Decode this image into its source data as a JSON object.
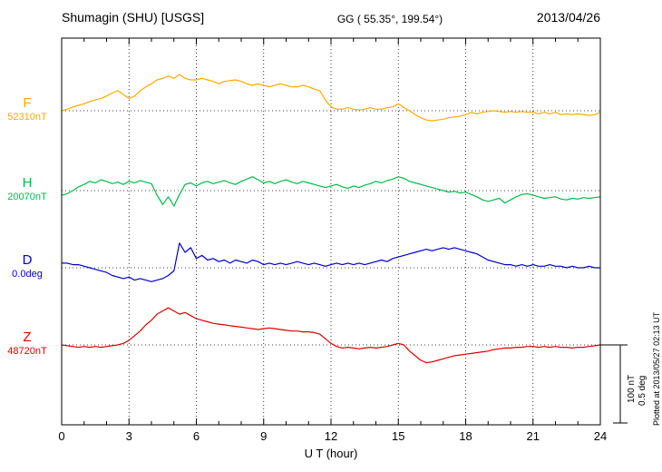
{
  "header": {
    "station": "Shumagin (SHU)  [USGS]",
    "coords": "GG ( 55.35°, 199.54°)",
    "date": "2013/04/26"
  },
  "side": {
    "plotted_at": "Plotted at 2013/05/27 02:13 UT",
    "scale_nt_label": "100 nT",
    "scale_deg_label": "0.5 deg"
  },
  "chart_data": {
    "type": "line",
    "title": "Shumagin (SHU) [USGS] magnetogram 2013/04/26",
    "xlabel": "U T (hour)",
    "x_range": [
      0,
      24
    ],
    "x_ticks": [
      0,
      3,
      6,
      9,
      12,
      15,
      18,
      21,
      24
    ],
    "x_step_hours": 0.25,
    "grid": "dotted vertical lines every 3 hours, dotted horizontal baseline per trace",
    "scale_bar": {
      "nT": 100,
      "deg": 0.5
    },
    "series": [
      {
        "name": "F",
        "baseline_label": "52310nT",
        "baseline_value": 52310,
        "unit": "nT",
        "color": "#FFAA00",
        "values": [
          0,
          2,
          5,
          7,
          9,
          12,
          14,
          16,
          19,
          23,
          26,
          21,
          16,
          19,
          26,
          31,
          35,
          40,
          42,
          45,
          42,
          47,
          42,
          40,
          40,
          42,
          40,
          38,
          35,
          38,
          39,
          40,
          38,
          35,
          33,
          35,
          33,
          31,
          33,
          35,
          33,
          31,
          31,
          33,
          31,
          28,
          26,
          14,
          5,
          2,
          2,
          4,
          2,
          1,
          2,
          4,
          2,
          2,
          4,
          5,
          9,
          4,
          0,
          -5,
          -9,
          -12,
          -13,
          -12,
          -11,
          -9,
          -8,
          -7,
          -5,
          -2,
          -4,
          -2,
          -1,
          0,
          -1,
          -2,
          -1,
          -2,
          -1,
          -2,
          -2,
          -4,
          -2,
          -4,
          -2,
          -5,
          -4,
          -5,
          -4,
          -5,
          -6,
          -5,
          -2
        ]
      },
      {
        "name": "H",
        "baseline_label": "20070nT",
        "baseline_value": 20070,
        "unit": "nT",
        "color": "#00BB44",
        "values": [
          -6,
          -4,
          0,
          5,
          8,
          12,
          10,
          14,
          12,
          9,
          11,
          8,
          12,
          10,
          13,
          11,
          9,
          -6,
          -18,
          -8,
          -20,
          -5,
          8,
          10,
          6,
          10,
          12,
          9,
          11,
          13,
          10,
          8,
          12,
          15,
          18,
          14,
          10,
          12,
          9,
          12,
          14,
          11,
          9,
          12,
          10,
          8,
          6,
          4,
          6,
          8,
          5,
          3,
          6,
          4,
          7,
          9,
          12,
          10,
          13,
          15,
          18,
          16,
          12,
          10,
          8,
          6,
          4,
          2,
          0,
          -2,
          -1,
          -3,
          -2,
          -5,
          -8,
          -12,
          -14,
          -12,
          -10,
          -16,
          -12,
          -8,
          -5,
          -4,
          -6,
          -8,
          -10,
          -9,
          -8,
          -11,
          -12,
          -10,
          -11,
          -9,
          -10,
          -9,
          -8
        ]
      },
      {
        "name": "D",
        "baseline_label": "0.0deg",
        "baseline_value": 0.0,
        "unit": "deg",
        "color": "#0000CC",
        "values": [
          0.03,
          0.03,
          0.02,
          0.02,
          0.01,
          0.0,
          -0.01,
          -0.02,
          -0.03,
          -0.05,
          -0.06,
          -0.07,
          -0.06,
          -0.08,
          -0.07,
          -0.08,
          -0.09,
          -0.08,
          -0.07,
          -0.05,
          -0.02,
          0.16,
          0.1,
          0.13,
          0.06,
          0.08,
          0.05,
          0.06,
          0.04,
          0.05,
          0.03,
          0.05,
          0.04,
          0.03,
          0.05,
          0.04,
          0.02,
          0.03,
          0.02,
          0.03,
          0.02,
          0.03,
          0.04,
          0.03,
          0.02,
          0.03,
          0.02,
          0.01,
          0.02,
          0.03,
          0.02,
          0.03,
          0.02,
          0.03,
          0.02,
          0.03,
          0.04,
          0.05,
          0.04,
          0.06,
          0.07,
          0.08,
          0.09,
          0.1,
          0.11,
          0.12,
          0.11,
          0.12,
          0.13,
          0.12,
          0.13,
          0.12,
          0.11,
          0.1,
          0.09,
          0.07,
          0.05,
          0.04,
          0.03,
          0.02,
          0.02,
          0.01,
          0.02,
          0.01,
          0.02,
          0.01,
          0.01,
          0.02,
          0.01,
          0.01,
          0.0,
          0.01,
          0.0,
          0.0,
          0.01,
          0.0,
          0.0
        ]
      },
      {
        "name": "Z",
        "baseline_label": "48720nT",
        "baseline_value": 48720,
        "unit": "nT",
        "color": "#DD0000",
        "values": [
          0,
          -1,
          -2,
          -3,
          -2,
          -3,
          -2,
          -3,
          -2,
          -1,
          0,
          2,
          6,
          12,
          18,
          26,
          32,
          40,
          44,
          48,
          44,
          40,
          42,
          38,
          34,
          32,
          30,
          28,
          27,
          26,
          25,
          24,
          23,
          22,
          21,
          20,
          21,
          22,
          21,
          20,
          19,
          18,
          18,
          17,
          17,
          16,
          14,
          8,
          2,
          -2,
          -4,
          -3,
          -4,
          -5,
          -4,
          -3,
          -4,
          -3,
          -2,
          0,
          2,
          0,
          -8,
          -14,
          -20,
          -23,
          -22,
          -20,
          -18,
          -16,
          -14,
          -13,
          -12,
          -11,
          -10,
          -9,
          -8,
          -6,
          -5,
          -4,
          -4,
          -3,
          -3,
          -2,
          -2,
          -3,
          -2,
          -3,
          -2,
          -3,
          -3,
          -4,
          -3,
          -3,
          -2,
          -1,
          0
        ]
      }
    ]
  }
}
